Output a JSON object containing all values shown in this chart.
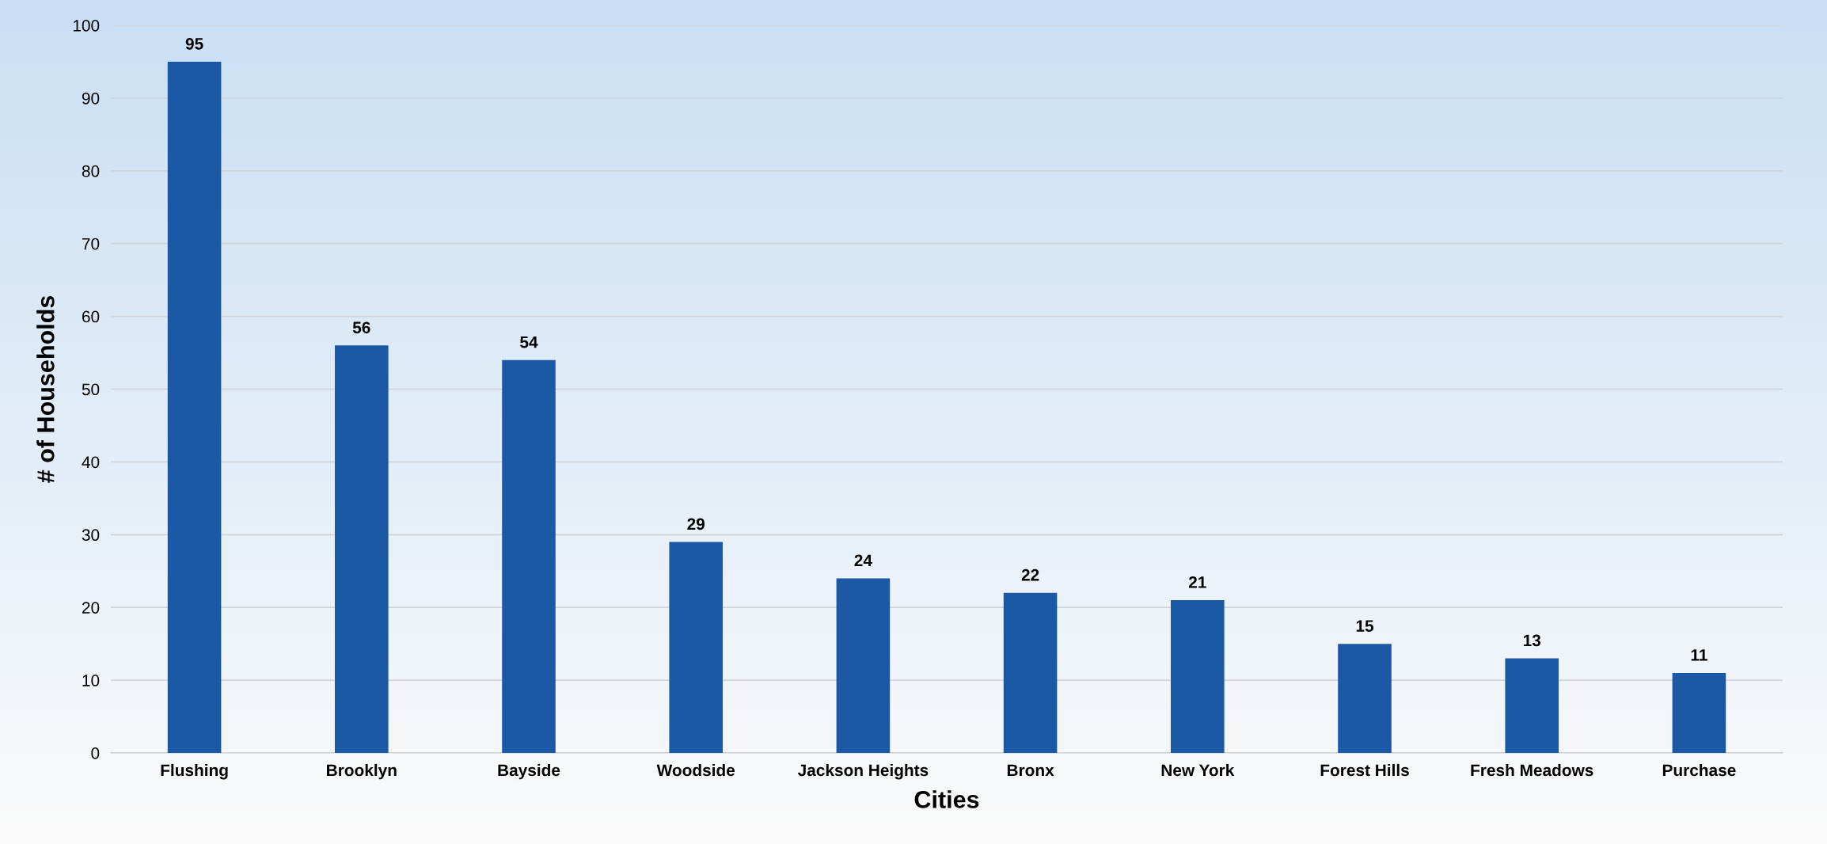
{
  "chart_data": {
    "type": "bar",
    "xlabel": "Cities",
    "ylabel": "# of Households",
    "categories": [
      "Flushing",
      "Brooklyn",
      "Bayside",
      "Woodside",
      "Jackson Heights",
      "Bronx",
      "New York",
      "Forest Hills",
      "Fresh Meadows",
      "Purchase"
    ],
    "values": [
      95,
      56,
      54,
      29,
      24,
      22,
      21,
      15,
      13,
      11
    ],
    "color": "#1c59a5",
    "ylim": [
      0,
      100
    ],
    "yticks": [
      0,
      10,
      20,
      30,
      40,
      50,
      60,
      70,
      80,
      90,
      100
    ],
    "grid": "y",
    "data_labels": true
  }
}
